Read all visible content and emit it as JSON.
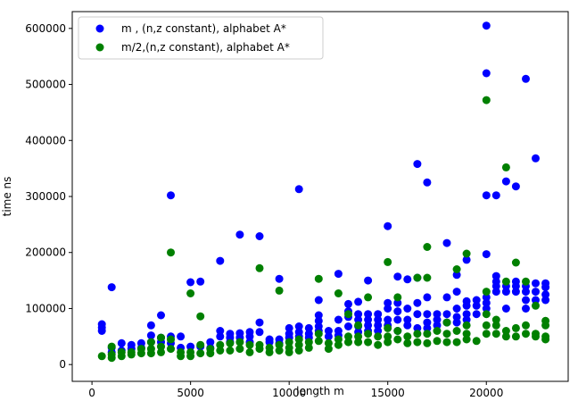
{
  "chart_data": {
    "type": "scatter",
    "xlabel": "length m",
    "ylabel": "time ns",
    "xlim": [
      -1000,
      24150
    ],
    "ylim": [
      -30000,
      630000
    ],
    "x_ticks": [
      {
        "value": 0,
        "label": "0"
      },
      {
        "value": 5000,
        "label": "5000"
      },
      {
        "value": 10000,
        "label": "10000"
      },
      {
        "value": 15000,
        "label": "15000"
      },
      {
        "value": 20000,
        "label": "20000"
      }
    ],
    "y_ticks": [
      {
        "value": 0,
        "label": "0"
      },
      {
        "value": 100000,
        "label": "100000"
      },
      {
        "value": 200000,
        "label": "200000"
      },
      {
        "value": 300000,
        "label": "300000"
      },
      {
        "value": 400000,
        "label": "400000"
      },
      {
        "value": 500000,
        "label": "500000"
      },
      {
        "value": 600000,
        "label": "600000"
      }
    ],
    "grid": false,
    "legend_position": "top-left",
    "series": [
      {
        "name": "m , (n,z constant), alphabet A*",
        "color": "#0000ff",
        "points": [
          [
            500,
            72000
          ],
          [
            500,
            66000
          ],
          [
            500,
            60000
          ],
          [
            1000,
            138000
          ],
          [
            1000,
            30000
          ],
          [
            1000,
            22000
          ],
          [
            1500,
            38000
          ],
          [
            1500,
            25000
          ],
          [
            2000,
            35000
          ],
          [
            2000,
            28000
          ],
          [
            2500,
            38000
          ],
          [
            2500,
            30000
          ],
          [
            3000,
            70000
          ],
          [
            3000,
            52000
          ],
          [
            3000,
            40000
          ],
          [
            3500,
            88000
          ],
          [
            3500,
            48000
          ],
          [
            3500,
            40000
          ],
          [
            4000,
            302000
          ],
          [
            4000,
            50000
          ],
          [
            4000,
            38000
          ],
          [
            4500,
            50000
          ],
          [
            4500,
            30000
          ],
          [
            5000,
            147000
          ],
          [
            5000,
            32000
          ],
          [
            5500,
            148000
          ],
          [
            5500,
            32000
          ],
          [
            6000,
            40000
          ],
          [
            6000,
            30000
          ],
          [
            6500,
            185000
          ],
          [
            6500,
            60000
          ],
          [
            6500,
            50000
          ],
          [
            7000,
            55000
          ],
          [
            7000,
            48000
          ],
          [
            7000,
            40000
          ],
          [
            7500,
            232000
          ],
          [
            7500,
            56000
          ],
          [
            7500,
            48000
          ],
          [
            8000,
            58000
          ],
          [
            8000,
            50000
          ],
          [
            8000,
            40000
          ],
          [
            8500,
            229000
          ],
          [
            8500,
            75000
          ],
          [
            8500,
            58000
          ],
          [
            9000,
            45000
          ],
          [
            9000,
            40000
          ],
          [
            9500,
            153000
          ],
          [
            9500,
            45000
          ],
          [
            9500,
            38000
          ],
          [
            10000,
            65000
          ],
          [
            10000,
            55000
          ],
          [
            10000,
            48000
          ],
          [
            10500,
            313000
          ],
          [
            10500,
            68000
          ],
          [
            10500,
            58000
          ],
          [
            10500,
            50000
          ],
          [
            11000,
            65000
          ],
          [
            11000,
            55000
          ],
          [
            11000,
            48000
          ],
          [
            11500,
            115000
          ],
          [
            11500,
            88000
          ],
          [
            11500,
            78000
          ],
          [
            11500,
            68000
          ],
          [
            11500,
            60000
          ],
          [
            12000,
            60000
          ],
          [
            12000,
            50000
          ],
          [
            12500,
            162000
          ],
          [
            12500,
            80000
          ],
          [
            12500,
            60000
          ],
          [
            12500,
            52000
          ],
          [
            13000,
            108000
          ],
          [
            13000,
            95000
          ],
          [
            13000,
            85000
          ],
          [
            13000,
            68000
          ],
          [
            13500,
            112000
          ],
          [
            13500,
            90000
          ],
          [
            13500,
            80000
          ],
          [
            13500,
            68000
          ],
          [
            13500,
            58000
          ],
          [
            14000,
            150000
          ],
          [
            14000,
            90000
          ],
          [
            14000,
            80000
          ],
          [
            14000,
            70000
          ],
          [
            14000,
            60000
          ],
          [
            14500,
            90000
          ],
          [
            14500,
            80000
          ],
          [
            14500,
            70000
          ],
          [
            14500,
            60000
          ],
          [
            15000,
            247000
          ],
          [
            15000,
            110000
          ],
          [
            15000,
            100000
          ],
          [
            15000,
            80000
          ],
          [
            15000,
            70000
          ],
          [
            15500,
            157000
          ],
          [
            15500,
            110000
          ],
          [
            15500,
            95000
          ],
          [
            15500,
            80000
          ],
          [
            15500,
            60000
          ],
          [
            16000,
            152000
          ],
          [
            16000,
            100000
          ],
          [
            16000,
            80000
          ],
          [
            16000,
            70000
          ],
          [
            16500,
            358000
          ],
          [
            16500,
            155000
          ],
          [
            16500,
            110000
          ],
          [
            16500,
            90000
          ],
          [
            16500,
            65000
          ],
          [
            17000,
            325000
          ],
          [
            17000,
            120000
          ],
          [
            17000,
            90000
          ],
          [
            17000,
            75000
          ],
          [
            17000,
            65000
          ],
          [
            17500,
            90000
          ],
          [
            17500,
            80000
          ],
          [
            17500,
            70000
          ],
          [
            18000,
            217000
          ],
          [
            18000,
            120000
          ],
          [
            18000,
            90000
          ],
          [
            18000,
            75000
          ],
          [
            18500,
            160000
          ],
          [
            18500,
            130000
          ],
          [
            18500,
            100000
          ],
          [
            18500,
            85000
          ],
          [
            18500,
            75000
          ],
          [
            19000,
            187000
          ],
          [
            19000,
            113000
          ],
          [
            19000,
            105000
          ],
          [
            19000,
            90000
          ],
          [
            19000,
            80000
          ],
          [
            19500,
            115000
          ],
          [
            19500,
            105000
          ],
          [
            19500,
            90000
          ],
          [
            20000,
            605000
          ],
          [
            20000,
            520000
          ],
          [
            20000,
            302000
          ],
          [
            20000,
            197000
          ],
          [
            20000,
            120000
          ],
          [
            20000,
            110000
          ],
          [
            20000,
            100000
          ],
          [
            20500,
            302000
          ],
          [
            20500,
            158000
          ],
          [
            20500,
            148000
          ],
          [
            20500,
            140000
          ],
          [
            20500,
            130000
          ],
          [
            21000,
            327000
          ],
          [
            21000,
            140000
          ],
          [
            21000,
            130000
          ],
          [
            21000,
            100000
          ],
          [
            21500,
            318000
          ],
          [
            21500,
            148000
          ],
          [
            21500,
            140000
          ],
          [
            21500,
            130000
          ],
          [
            22000,
            510000
          ],
          [
            22000,
            140000
          ],
          [
            22000,
            130000
          ],
          [
            22000,
            115000
          ],
          [
            22000,
            100000
          ],
          [
            22500,
            368000
          ],
          [
            22500,
            145000
          ],
          [
            22500,
            130000
          ],
          [
            22500,
            115000
          ],
          [
            23000,
            145000
          ],
          [
            23000,
            138000
          ],
          [
            23000,
            125000
          ],
          [
            23000,
            115000
          ]
        ]
      },
      {
        "name": "m/2,(n,z constant), alphabet A*",
        "color": "#008000",
        "points": [
          [
            500,
            15000
          ],
          [
            1000,
            32000
          ],
          [
            1000,
            18000
          ],
          [
            1000,
            12000
          ],
          [
            1500,
            22000
          ],
          [
            1500,
            15000
          ],
          [
            2000,
            22000
          ],
          [
            2000,
            18000
          ],
          [
            2500,
            28000
          ],
          [
            2500,
            20000
          ],
          [
            3000,
            40000
          ],
          [
            3000,
            28000
          ],
          [
            3000,
            20000
          ],
          [
            3500,
            48000
          ],
          [
            3500,
            32000
          ],
          [
            3500,
            22000
          ],
          [
            4000,
            200000
          ],
          [
            4000,
            45000
          ],
          [
            4000,
            28000
          ],
          [
            4500,
            22000
          ],
          [
            4500,
            15000
          ],
          [
            5000,
            127000
          ],
          [
            5000,
            22000
          ],
          [
            5000,
            15000
          ],
          [
            5500,
            86000
          ],
          [
            5500,
            35000
          ],
          [
            5500,
            20000
          ],
          [
            6000,
            28000
          ],
          [
            6000,
            20000
          ],
          [
            6500,
            35000
          ],
          [
            6500,
            25000
          ],
          [
            7000,
            38000
          ],
          [
            7000,
            25000
          ],
          [
            7500,
            40000
          ],
          [
            7500,
            28000
          ],
          [
            8000,
            35000
          ],
          [
            8000,
            22000
          ],
          [
            8500,
            172000
          ],
          [
            8500,
            35000
          ],
          [
            8500,
            28000
          ],
          [
            9000,
            30000
          ],
          [
            9000,
            22000
          ],
          [
            9500,
            132000
          ],
          [
            9500,
            35000
          ],
          [
            9500,
            25000
          ],
          [
            10000,
            40000
          ],
          [
            10000,
            30000
          ],
          [
            10000,
            22000
          ],
          [
            10500,
            45000
          ],
          [
            10500,
            35000
          ],
          [
            10500,
            25000
          ],
          [
            11000,
            40000
          ],
          [
            11000,
            30000
          ],
          [
            11500,
            153000
          ],
          [
            11500,
            55000
          ],
          [
            11500,
            42000
          ],
          [
            12000,
            38000
          ],
          [
            12000,
            28000
          ],
          [
            12500,
            127000
          ],
          [
            12500,
            45000
          ],
          [
            12500,
            35000
          ],
          [
            13000,
            90000
          ],
          [
            13000,
            50000
          ],
          [
            13000,
            40000
          ],
          [
            13500,
            70000
          ],
          [
            13500,
            50000
          ],
          [
            13500,
            40000
          ],
          [
            14000,
            120000
          ],
          [
            14000,
            55000
          ],
          [
            14000,
            40000
          ],
          [
            14500,
            50000
          ],
          [
            14500,
            35000
          ],
          [
            15000,
            183000
          ],
          [
            15000,
            65000
          ],
          [
            15000,
            50000
          ],
          [
            15000,
            40000
          ],
          [
            15500,
            120000
          ],
          [
            15500,
            60000
          ],
          [
            15500,
            45000
          ],
          [
            16000,
            50000
          ],
          [
            16000,
            38000
          ],
          [
            16500,
            155000
          ],
          [
            16500,
            55000
          ],
          [
            16500,
            40000
          ],
          [
            17000,
            210000
          ],
          [
            17000,
            155000
          ],
          [
            17000,
            55000
          ],
          [
            17000,
            38000
          ],
          [
            17500,
            60000
          ],
          [
            17500,
            42000
          ],
          [
            18000,
            75000
          ],
          [
            18000,
            55000
          ],
          [
            18000,
            40000
          ],
          [
            18500,
            170000
          ],
          [
            18500,
            60000
          ],
          [
            18500,
            40000
          ],
          [
            19000,
            198000
          ],
          [
            19000,
            70000
          ],
          [
            19000,
            55000
          ],
          [
            19000,
            45000
          ],
          [
            19500,
            42000
          ],
          [
            20000,
            472000
          ],
          [
            20000,
            130000
          ],
          [
            20000,
            90000
          ],
          [
            20000,
            70000
          ],
          [
            20000,
            55000
          ],
          [
            20500,
            80000
          ],
          [
            20500,
            70000
          ],
          [
            20500,
            55000
          ],
          [
            21000,
            352000
          ],
          [
            21000,
            148000
          ],
          [
            21000,
            60000
          ],
          [
            21000,
            50000
          ],
          [
            21500,
            182000
          ],
          [
            21500,
            65000
          ],
          [
            21500,
            50000
          ],
          [
            22000,
            148000
          ],
          [
            22000,
            70000
          ],
          [
            22000,
            55000
          ],
          [
            22500,
            105000
          ],
          [
            22500,
            55000
          ],
          [
            22500,
            50000
          ],
          [
            23000,
            78000
          ],
          [
            23000,
            70000
          ],
          [
            23000,
            50000
          ],
          [
            23000,
            45000
          ]
        ]
      }
    ]
  }
}
